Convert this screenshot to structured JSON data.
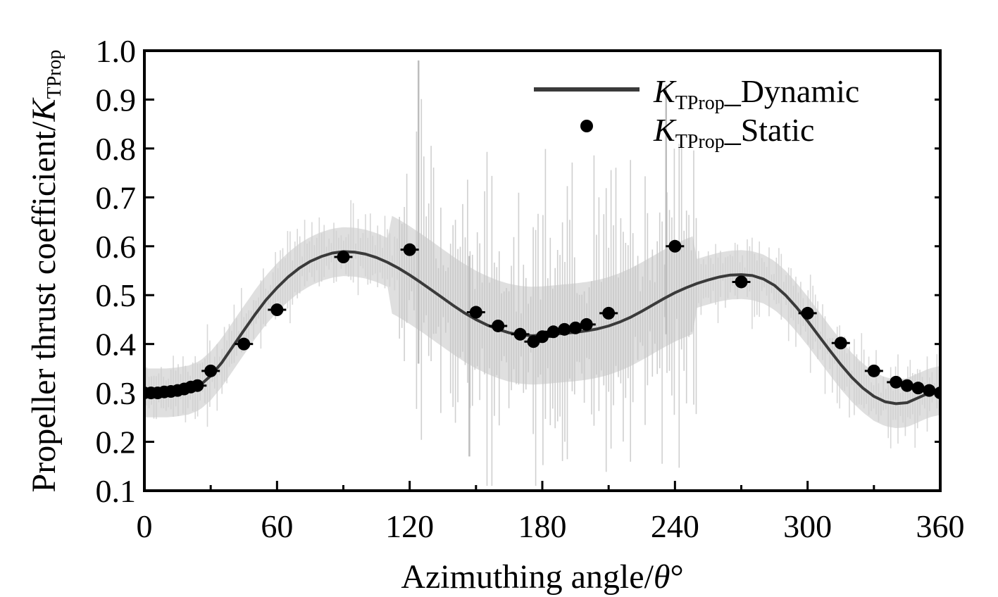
{
  "chart_data": {
    "type": "line",
    "xlabel_prefix": "Azimuthing angle/",
    "xlabel_symbol": "θ",
    "xlabel_suffix": "°",
    "ylabel_prefix": "Propeller thrust coefficient/",
    "ylabel_symbol": "K",
    "ylabel_subscript": "TProp",
    "xlim": [
      0,
      360
    ],
    "ylim": [
      0.1,
      1.0
    ],
    "xticks": [
      0,
      60,
      120,
      180,
      240,
      300,
      360
    ],
    "xtick_labels": [
      "0",
      "60",
      "120",
      "180",
      "240",
      "300",
      "360"
    ],
    "yticks": [
      0.1,
      0.2,
      0.3,
      0.4,
      0.5,
      0.6,
      0.7,
      0.8,
      0.9,
      1.0
    ],
    "ytick_labels": [
      "0.1",
      "0.2",
      "0.3",
      "0.4",
      "0.5",
      "0.6",
      "0.7",
      "0.8",
      "0.9",
      "1.0"
    ],
    "legend_position": "top-right",
    "series": [
      {
        "name": "Dynamic",
        "legend_symbol": "K",
        "legend_subscript": "TProp",
        "legend_suffix": "_Dynamic",
        "kind": "line",
        "color": "#3a3a3a",
        "x": [
          0,
          5,
          10,
          15,
          20,
          25,
          30,
          35,
          40,
          45,
          50,
          55,
          60,
          65,
          70,
          75,
          80,
          85,
          90,
          95,
          100,
          105,
          110,
          115,
          120,
          125,
          130,
          135,
          140,
          145,
          150,
          155,
          160,
          165,
          170,
          175,
          180,
          185,
          190,
          195,
          200,
          205,
          210,
          215,
          220,
          225,
          230,
          235,
          240,
          245,
          250,
          255,
          260,
          265,
          270,
          275,
          280,
          285,
          290,
          295,
          300,
          305,
          310,
          315,
          320,
          325,
          330,
          335,
          340,
          345,
          350,
          355,
          360
        ],
        "y": [
          0.3,
          0.3,
          0.3,
          0.302,
          0.306,
          0.315,
          0.335,
          0.362,
          0.395,
          0.428,
          0.46,
          0.49,
          0.515,
          0.537,
          0.555,
          0.569,
          0.579,
          0.586,
          0.589,
          0.588,
          0.584,
          0.577,
          0.567,
          0.555,
          0.541,
          0.526,
          0.51,
          0.494,
          0.478,
          0.463,
          0.45,
          0.439,
          0.43,
          0.423,
          0.419,
          0.417,
          0.418,
          0.42,
          0.422,
          0.424,
          0.427,
          0.431,
          0.437,
          0.445,
          0.455,
          0.467,
          0.48,
          0.493,
          0.505,
          0.515,
          0.524,
          0.531,
          0.537,
          0.541,
          0.542,
          0.54,
          0.533,
          0.52,
          0.5,
          0.475,
          0.447,
          0.417,
          0.387,
          0.358,
          0.332,
          0.31,
          0.293,
          0.282,
          0.278,
          0.28,
          0.29,
          0.3,
          0.305
        ]
      },
      {
        "name": "Static",
        "legend_symbol": "K",
        "legend_subscript": "TProp",
        "legend_suffix": "_Static",
        "kind": "scatter",
        "color": "#000000",
        "x": [
          0,
          3,
          6,
          9,
          12,
          15,
          18,
          21,
          24,
          30,
          45,
          60,
          90,
          120,
          150,
          160,
          170,
          176,
          180,
          185,
          190,
          195,
          200,
          210,
          240,
          270,
          300,
          315,
          330,
          340,
          345,
          350,
          355,
          360
        ],
        "y": [
          0.3,
          0.3,
          0.3,
          0.302,
          0.303,
          0.305,
          0.308,
          0.312,
          0.315,
          0.345,
          0.4,
          0.47,
          0.578,
          0.593,
          0.465,
          0.437,
          0.42,
          0.405,
          0.415,
          0.425,
          0.43,
          0.433,
          0.44,
          0.463,
          0.6,
          0.527,
          0.463,
          0.402,
          0.345,
          0.322,
          0.315,
          0.31,
          0.305,
          0.3
        ]
      }
    ]
  }
}
